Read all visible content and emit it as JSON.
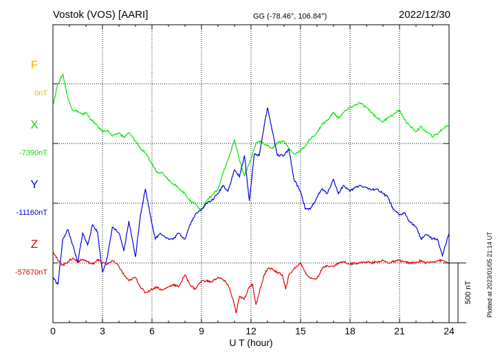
{
  "header": {
    "station": "Vostok (VOS)  [AARI]",
    "coords": "GG (-78.46°, 106.84°)",
    "date": "2022/12/30"
  },
  "side_note": "Plotted at 2023/01/05 21:14 UT",
  "chart_data": {
    "type": "line",
    "xlabel": "U T (hour)",
    "xlim": [
      0,
      24
    ],
    "x_ticks": [
      "0",
      "3",
      "6",
      "9",
      "12",
      "15",
      "18",
      "21",
      "24"
    ],
    "ylim_nT": [
      -1000,
      1000
    ],
    "scale_bar": "500 nT",
    "grid": true,
    "series": [
      {
        "name": "F",
        "baseline": "0nT",
        "color": "#f0b400",
        "t": [],
        "v": []
      },
      {
        "name": "X",
        "baseline": "-7390nT",
        "color": "#00e600",
        "t": [
          0,
          0.3,
          0.6,
          0.9,
          1.2,
          1.5,
          1.8,
          2.0,
          2.3,
          2.6,
          3.0,
          3.3,
          3.6,
          4.0,
          4.3,
          4.6,
          5.0,
          5.3,
          5.6,
          6.0,
          6.3,
          6.6,
          7.0,
          7.3,
          7.6,
          8.0,
          8.3,
          8.6,
          9.0,
          9.3,
          9.6,
          10.0,
          10.3,
          10.6,
          11.0,
          11.3,
          11.6,
          12.0,
          12.3,
          12.6,
          13.0,
          13.3,
          13.6,
          14.0,
          14.3,
          14.6,
          15.0,
          15.3,
          15.6,
          16.0,
          16.3,
          16.6,
          17.0,
          17.3,
          17.6,
          18.0,
          18.3,
          18.6,
          19.0,
          19.3,
          19.6,
          20.0,
          20.3,
          20.6,
          21.0,
          21.3,
          21.6,
          22.0,
          22.3,
          22.6,
          23.0,
          23.3,
          23.6,
          24.0
        ],
        "v": [
          320,
          500,
          580,
          380,
          280,
          270,
          240,
          260,
          200,
          160,
          100,
          110,
          60,
          90,
          50,
          90,
          20,
          -40,
          -80,
          -170,
          -240,
          -240,
          -300,
          -340,
          -370,
          -420,
          -480,
          -500,
          -560,
          -480,
          -440,
          -380,
          -250,
          -140,
          30,
          -140,
          -270,
          -130,
          0,
          20,
          -20,
          -40,
          10,
          20,
          -40,
          -90,
          -60,
          -20,
          40,
          90,
          160,
          190,
          260,
          210,
          260,
          300,
          320,
          340,
          300,
          260,
          220,
          180,
          220,
          240,
          280,
          200,
          150,
          100,
          140,
          100,
          60,
          80,
          120,
          160
        ]
      },
      {
        "name": "Y",
        "baseline": "-11160nT",
        "color": "#0000dd",
        "t": [
          0,
          0.3,
          0.6,
          0.9,
          1.2,
          1.5,
          1.8,
          2.1,
          2.4,
          2.7,
          3.0,
          3.3,
          3.6,
          4.0,
          4.3,
          4.6,
          5.0,
          5.3,
          5.6,
          5.9,
          6.2,
          6.5,
          7.0,
          7.3,
          7.6,
          8.0,
          8.3,
          8.6,
          9.0,
          9.3,
          9.6,
          10.0,
          10.3,
          10.6,
          11.0,
          11.3,
          11.6,
          11.9,
          12.2,
          12.5,
          12.8,
          13.0,
          13.3,
          13.6,
          14.0,
          14.3,
          14.6,
          15.0,
          15.3,
          15.6,
          16.0,
          16.3,
          16.6,
          17.0,
          17.3,
          17.6,
          18.0,
          18.3,
          18.6,
          19.0,
          19.3,
          19.6,
          20.0,
          20.3,
          20.6,
          21.0,
          21.3,
          21.6,
          22.0,
          22.3,
          22.6,
          23.0,
          23.3,
          23.6,
          24.0
        ],
        "v": [
          -620,
          -680,
          -300,
          -220,
          -350,
          -500,
          -250,
          -350,
          -180,
          -240,
          -580,
          -450,
          -200,
          -250,
          -400,
          -150,
          -450,
          -100,
          120,
          -100,
          -300,
          -250,
          -300,
          -300,
          -250,
          -300,
          -180,
          -100,
          -50,
          0,
          20,
          80,
          150,
          100,
          280,
          220,
          400,
          20,
          410,
          400,
          650,
          800,
          600,
          400,
          400,
          450,
          200,
          100,
          -50,
          -50,
          50,
          120,
          80,
          200,
          80,
          150,
          100,
          130,
          150,
          130,
          110,
          120,
          80,
          50,
          -50,
          -100,
          -80,
          -150,
          -200,
          -300,
          -260,
          -300,
          -300,
          -440,
          -250
        ]
      },
      {
        "name": "Z",
        "baseline": "-57670nT",
        "color": "#dd0000",
        "t": [
          0,
          0.3,
          0.6,
          0.9,
          1.2,
          1.5,
          1.8,
          2.1,
          2.4,
          2.7,
          3.0,
          3.3,
          3.6,
          4.0,
          4.3,
          4.6,
          5.0,
          5.3,
          5.6,
          6.0,
          6.3,
          6.6,
          7.0,
          7.3,
          7.6,
          8.0,
          8.3,
          8.6,
          9.0,
          9.3,
          9.6,
          10.0,
          10.3,
          10.6,
          10.9,
          11.1,
          11.3,
          11.6,
          11.9,
          12.1,
          12.3,
          12.5,
          12.8,
          13.0,
          13.3,
          13.6,
          13.9,
          14.1,
          14.3,
          14.6,
          15.0,
          15.3,
          15.6,
          16.0,
          16.3,
          16.6,
          17.0,
          17.3,
          17.6,
          18.0,
          18.3,
          18.6,
          19.0,
          19.3,
          19.6,
          20.0,
          20.3,
          20.6,
          21.0,
          21.3,
          21.6,
          22.0,
          22.3,
          22.6,
          23.0,
          23.3,
          23.6,
          24.0
        ],
        "v": [
          100,
          20,
          -20,
          10,
          40,
          10,
          30,
          10,
          -10,
          30,
          0,
          -10,
          20,
          -30,
          -100,
          -150,
          -120,
          -200,
          -250,
          -220,
          -200,
          -230,
          -200,
          -180,
          -200,
          -100,
          -180,
          -220,
          -150,
          -150,
          -160,
          -120,
          -140,
          -180,
          -300,
          -420,
          -280,
          -300,
          -200,
          -180,
          -350,
          -250,
          -100,
          -50,
          -50,
          -80,
          -100,
          -220,
          -100,
          -50,
          0,
          -80,
          -130,
          -130,
          -50,
          -20,
          -30,
          0,
          10,
          -10,
          0,
          0,
          10,
          0,
          10,
          20,
          0,
          10,
          20,
          10,
          0,
          0,
          20,
          0,
          10,
          20,
          20,
          0
        ]
      }
    ]
  }
}
